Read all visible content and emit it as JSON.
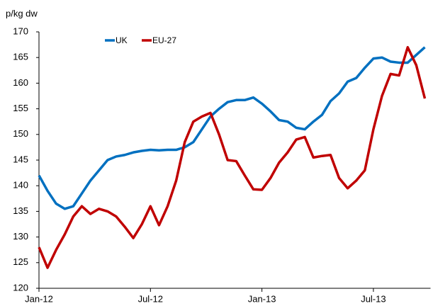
{
  "chart_data": {
    "type": "line",
    "y_label": "p/kg dw",
    "categories": [
      "Jan-12",
      null,
      null,
      null,
      null,
      null,
      null,
      null,
      null,
      null,
      null,
      null,
      null,
      "Jul-12",
      null,
      null,
      null,
      null,
      null,
      null,
      null,
      null,
      null,
      null,
      null,
      null,
      "Jan-13",
      null,
      null,
      null,
      null,
      null,
      null,
      null,
      null,
      null,
      null,
      null,
      null,
      "Jul-13",
      null,
      null,
      null,
      null,
      null,
      null
    ],
    "series": [
      {
        "name": "UK",
        "color": "#0070c0",
        "values": [
          142,
          139,
          136.5,
          135.5,
          136,
          138.5,
          141,
          143,
          145,
          145.7,
          146,
          146.5,
          146.8,
          147,
          146.9,
          147,
          147,
          147.5,
          148.5,
          151,
          153.5,
          155,
          156.3,
          156.7,
          156.7,
          157.2,
          156,
          154.5,
          152.8,
          152.5,
          151.3,
          151,
          152.5,
          153.8,
          156.5,
          158,
          160.3,
          161,
          163,
          164.8,
          165,
          164.2,
          164,
          164,
          165.5,
          167
        ]
      },
      {
        "name": "EU-27",
        "color": "#c00000",
        "values": [
          128,
          124,
          127.5,
          130.5,
          134,
          136,
          134.5,
          135.5,
          135,
          134,
          132,
          129.8,
          132.5,
          136,
          132.3,
          136,
          141,
          148.5,
          152.5,
          153.5,
          154.2,
          150,
          145,
          144.8,
          142,
          139.3,
          139.2,
          141.5,
          144.5,
          146.5,
          149,
          149.5,
          145.5,
          145.8,
          146,
          141.5,
          139.5,
          141,
          143,
          151,
          157.5,
          161.8,
          161.5,
          167,
          163.5,
          157
        ]
      }
    ],
    "ylim": [
      120,
      170
    ],
    "yticks": [
      120,
      125,
      130,
      135,
      140,
      145,
      150,
      155,
      160,
      165,
      170
    ],
    "legend": "top-left"
  }
}
